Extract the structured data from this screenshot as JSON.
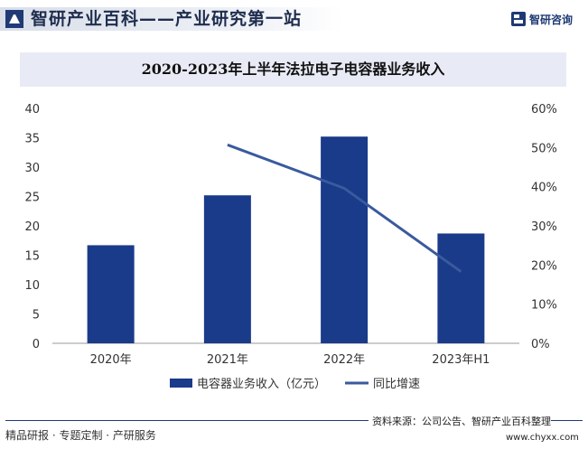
{
  "header": {
    "title": "智研产业百科——产业研究第一站",
    "brand": "智研咨询"
  },
  "footer": {
    "left_text": "精品研报 · 专题定制 · 产研服务",
    "source": "资料来源：公司公告、智研产业百科整理",
    "url": "www.chyxx.com"
  },
  "colors": {
    "bar": "#1a3a8a",
    "line": "#3a5a9e",
    "title_band": "#e8ebf5"
  },
  "chart_data": {
    "type": "bar",
    "title": "2020-2023年上半年法拉电子电容器业务收入",
    "categories": [
      "2020年",
      "2021年",
      "2022年",
      "2023年H1"
    ],
    "series": [
      {
        "name": "电容器业务收入（亿元）",
        "type": "bar",
        "axis": "left",
        "values": [
          16.7,
          25.2,
          35.2,
          18.7
        ]
      },
      {
        "name": "同比增速",
        "type": "line",
        "axis": "right",
        "values": [
          null,
          50.7,
          39.6,
          18.3
        ]
      }
    ],
    "y_left": {
      "min": 0,
      "max": 40,
      "step": 5,
      "ticks": [
        "0",
        "5",
        "10",
        "15",
        "20",
        "25",
        "30",
        "35",
        "40"
      ]
    },
    "y_right": {
      "min": 0,
      "max": 60,
      "step": 10,
      "ticks": [
        "0%",
        "10%",
        "20%",
        "30%",
        "40%",
        "50%",
        "60%"
      ]
    },
    "grid": false,
    "legend_position": "bottom"
  }
}
